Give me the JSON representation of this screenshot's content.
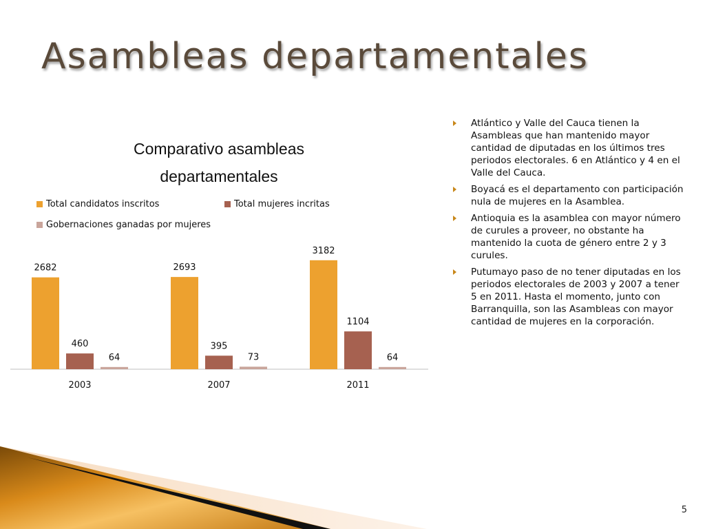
{
  "slide": {
    "title": "Asambleas departamentales",
    "page_number": "5",
    "bullets": [
      "Atlántico y Valle del Cauca tienen la Asambleas que han mantenido mayor cantidad de diputadas en los últimos tres periodos electorales. 6 en Atlántico y 4 en el Valle del Cauca.",
      "Boyacá es el departamento con participación nula de mujeres en la Asamblea.",
      "Antioquia es la asamblea con mayor número de curules a proveer, no obstante ha mantenido la cuota de género entre 2 y 3 curules.",
      "Putumayo paso de no tener diputadas en los periodos electorales de 2003 y 2007 a tener 5 en 2011. Hasta el momento, junto con Barranquilla, son las Asambleas con mayor cantidad de mujeres en la corporación."
    ]
  },
  "chart_data": {
    "type": "bar",
    "title_line1": "Comparativo asambleas",
    "title_line2": "departamentales",
    "categories": [
      "2003",
      "2007",
      "2011"
    ],
    "series": [
      {
        "name": "Total candidatos inscritos",
        "values": [
          2682,
          2693,
          3182
        ],
        "color": "#EDA12F"
      },
      {
        "name": "Total mujeres incritas",
        "values": [
          460,
          395,
          1104
        ],
        "color": "#A66150"
      },
      {
        "name": "Gobernaciones ganadas por mujeres",
        "values": [
          64,
          73,
          64
        ],
        "color": "#C9A59B"
      }
    ],
    "ylim": [
      0,
      3500
    ],
    "data_labels": true,
    "legend": "top",
    "grid": false
  },
  "colors": {
    "title": "#5a4a3a",
    "bullet_arrow": "#c8871a",
    "axis": "#bfbfbf"
  }
}
